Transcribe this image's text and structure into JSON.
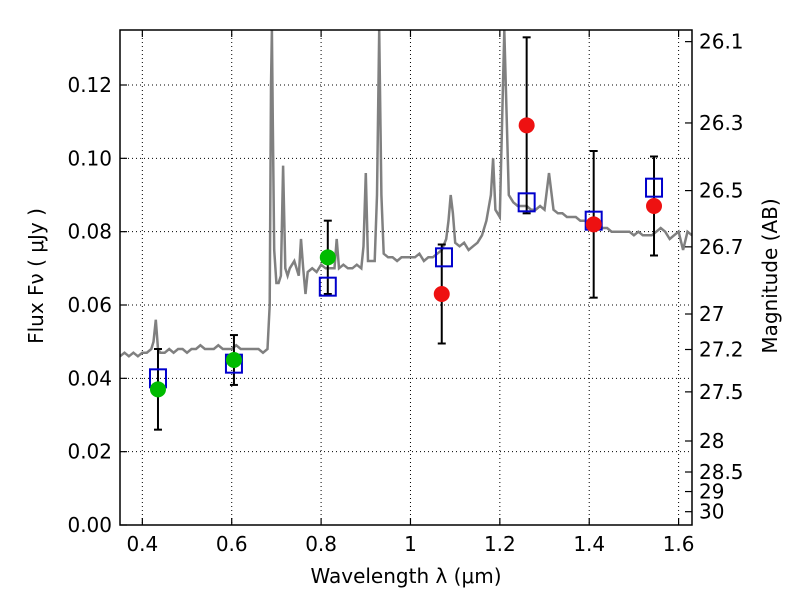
{
  "chart_data": {
    "type": "scatter",
    "title": "",
    "xlabel": "Wavelength  λ (μm)",
    "ylabel": "Flux  Fν  ( μJy )",
    "y2label": "Magnitude (AB)",
    "xlim": [
      0.35,
      1.63
    ],
    "ylim": [
      0.0,
      0.135
    ],
    "grid": true,
    "x_ticks": [
      0.4,
      0.6,
      0.8,
      1.0,
      1.2,
      1.4,
      1.6
    ],
    "x_tick_labels": [
      "0.4",
      "0.6",
      "0.8",
      "1",
      "1.2",
      "1.4",
      "1.6"
    ],
    "y_ticks": [
      0.0,
      0.02,
      0.04,
      0.06,
      0.08,
      0.1,
      0.12
    ],
    "y_tick_labels": [
      "0.00",
      "0.02",
      "0.04",
      "0.06",
      "0.08",
      "0.10",
      "0.12"
    ],
    "y2_ticks": [
      26.1,
      26.3,
      26.5,
      26.7,
      27,
      27.2,
      27.5,
      28,
      28.5,
      29,
      30
    ],
    "y2_tick_labels": [
      "26.1",
      "26.3",
      "26.5",
      "26.7",
      "27",
      "27.2",
      "27.5",
      "28",
      "28.5",
      "29",
      "30"
    ],
    "colors": {
      "model_spectrum": "#808080",
      "model_photometry": "#0000cc",
      "observed_green": "#00bb00",
      "observed_red": "#ee1111",
      "errorbar": "#000000"
    },
    "model_spectrum": {
      "x": [
        0.35,
        0.36,
        0.37,
        0.38,
        0.39,
        0.4,
        0.41,
        0.42,
        0.425,
        0.43,
        0.435,
        0.44,
        0.45,
        0.46,
        0.47,
        0.48,
        0.49,
        0.5,
        0.51,
        0.52,
        0.53,
        0.54,
        0.55,
        0.56,
        0.57,
        0.58,
        0.59,
        0.6,
        0.61,
        0.62,
        0.63,
        0.64,
        0.65,
        0.66,
        0.67,
        0.68,
        0.685,
        0.688,
        0.69,
        0.692,
        0.695,
        0.7,
        0.705,
        0.71,
        0.715,
        0.72,
        0.725,
        0.73,
        0.74,
        0.75,
        0.755,
        0.76,
        0.765,
        0.77,
        0.78,
        0.79,
        0.8,
        0.81,
        0.82,
        0.83,
        0.835,
        0.84,
        0.85,
        0.86,
        0.87,
        0.88,
        0.89,
        0.895,
        0.9,
        0.905,
        0.91,
        0.92,
        0.925,
        0.93,
        0.935,
        0.94,
        0.95,
        0.96,
        0.97,
        0.98,
        0.99,
        1.0,
        1.01,
        1.02,
        1.03,
        1.04,
        1.05,
        1.06,
        1.07,
        1.08,
        1.085,
        1.09,
        1.095,
        1.1,
        1.11,
        1.12,
        1.13,
        1.14,
        1.15,
        1.16,
        1.17,
        1.18,
        1.185,
        1.19,
        1.2,
        1.205,
        1.21,
        1.22,
        1.23,
        1.24,
        1.25,
        1.26,
        1.27,
        1.28,
        1.29,
        1.3,
        1.31,
        1.32,
        1.33,
        1.34,
        1.35,
        1.36,
        1.37,
        1.38,
        1.39,
        1.4,
        1.41,
        1.42,
        1.43,
        1.44,
        1.45,
        1.46,
        1.47,
        1.48,
        1.49,
        1.5,
        1.51,
        1.52,
        1.53,
        1.54,
        1.55,
        1.56,
        1.57,
        1.58,
        1.59,
        1.6,
        1.61,
        1.62,
        1.63
      ],
      "y": [
        0.046,
        0.047,
        0.046,
        0.047,
        0.046,
        0.047,
        0.047,
        0.048,
        0.05,
        0.056,
        0.048,
        0.047,
        0.047,
        0.048,
        0.047,
        0.048,
        0.048,
        0.047,
        0.048,
        0.048,
        0.049,
        0.048,
        0.048,
        0.048,
        0.049,
        0.048,
        0.048,
        0.048,
        0.049,
        0.048,
        0.048,
        0.048,
        0.048,
        0.048,
        0.047,
        0.048,
        0.06,
        0.12,
        0.135,
        0.11,
        0.075,
        0.066,
        0.066,
        0.068,
        0.098,
        0.07,
        0.068,
        0.07,
        0.072,
        0.068,
        0.078,
        0.07,
        0.063,
        0.069,
        0.07,
        0.069,
        0.071,
        0.07,
        0.07,
        0.07,
        0.078,
        0.07,
        0.071,
        0.07,
        0.07,
        0.071,
        0.07,
        0.076,
        0.096,
        0.072,
        0.072,
        0.072,
        0.09,
        0.135,
        0.09,
        0.074,
        0.073,
        0.073,
        0.072,
        0.073,
        0.073,
        0.073,
        0.073,
        0.074,
        0.072,
        0.073,
        0.073,
        0.074,
        0.075,
        0.078,
        0.083,
        0.09,
        0.085,
        0.077,
        0.076,
        0.077,
        0.075,
        0.076,
        0.077,
        0.079,
        0.083,
        0.09,
        0.1,
        0.086,
        0.084,
        0.11,
        0.135,
        0.09,
        0.088,
        0.087,
        0.087,
        0.087,
        0.086,
        0.086,
        0.087,
        0.086,
        0.096,
        0.086,
        0.085,
        0.085,
        0.084,
        0.084,
        0.084,
        0.083,
        0.083,
        0.082,
        0.083,
        0.082,
        0.081,
        0.081,
        0.08,
        0.08,
        0.08,
        0.08,
        0.08,
        0.079,
        0.08,
        0.079,
        0.079,
        0.079,
        0.08,
        0.081,
        0.08,
        0.078,
        0.079,
        0.08,
        0.075,
        0.08,
        0.079
      ]
    },
    "model_photometry": {
      "x": [
        0.435,
        0.605,
        0.815,
        1.075,
        1.26,
        1.41,
        1.545
      ],
      "y": [
        0.04,
        0.044,
        0.065,
        0.073,
        0.088,
        0.083,
        0.092
      ]
    },
    "observed": [
      {
        "x": 0.435,
        "y": 0.037,
        "err": 0.011,
        "color": "green"
      },
      {
        "x": 0.605,
        "y": 0.045,
        "err": 0.0068,
        "color": "green"
      },
      {
        "x": 0.815,
        "y": 0.073,
        "err": 0.01,
        "color": "green"
      },
      {
        "x": 1.07,
        "y": 0.063,
        "err": 0.0135,
        "color": "red"
      },
      {
        "x": 1.26,
        "y": 0.109,
        "err": 0.024,
        "color": "red"
      },
      {
        "x": 1.41,
        "y": 0.082,
        "err": 0.02,
        "color": "red"
      },
      {
        "x": 1.545,
        "y": 0.087,
        "err": 0.0135,
        "color": "red"
      }
    ]
  }
}
